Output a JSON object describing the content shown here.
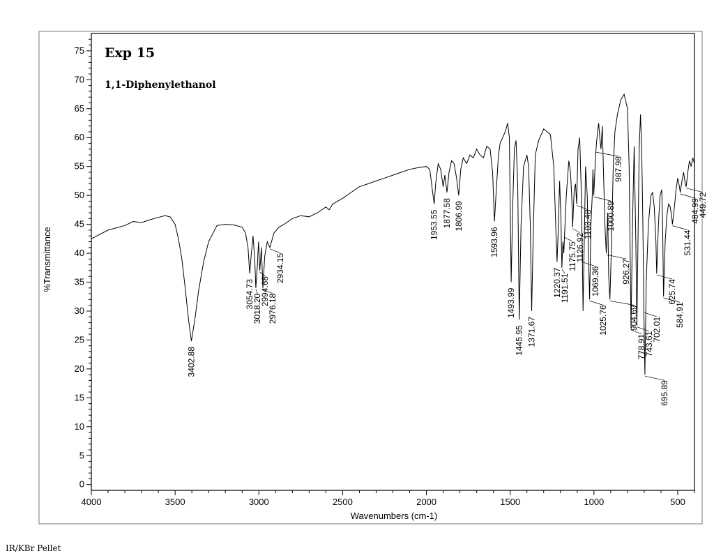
{
  "annotations": {
    "experiment": "Exp 15",
    "compound": "1,1-Diphenylethanol",
    "footer_note": "IR/KBr Pellet"
  },
  "chart_data": {
    "type": "line",
    "title": "",
    "xlabel": "Wavenumbers (cm-1)",
    "ylabel": "%Transmittance",
    "xlim": [
      4000,
      400
    ],
    "ylim": [
      -1,
      78
    ],
    "x_ticks": [
      "4000",
      "3500",
      "3000",
      "2500",
      "2000",
      "1500",
      "1000",
      "500"
    ],
    "y_ticks": [
      "0",
      "5",
      "10",
      "15",
      "20",
      "25",
      "30",
      "35",
      "40",
      "45",
      "50",
      "55",
      "60",
      "65",
      "70",
      "75"
    ],
    "grid": false,
    "series": [
      {
        "name": "",
        "x": [
          4000,
          3900,
          3800,
          3750,
          3700,
          3650,
          3600,
          3560,
          3530,
          3500,
          3480,
          3460,
          3440,
          3420,
          3402.88,
          3380,
          3360,
          3330,
          3300,
          3250,
          3200,
          3150,
          3100,
          3080,
          3065,
          3054.73,
          3045,
          3035,
          3025,
          3018.2,
          3010,
          3002,
          2994.68,
          2985,
          2976.18,
          2965,
          2950,
          2934.15,
          2910,
          2880,
          2850,
          2800,
          2750,
          2700,
          2650,
          2600,
          2580,
          2560,
          2500,
          2450,
          2400,
          2350,
          2300,
          2250,
          2200,
          2150,
          2100,
          2050,
          2000,
          1980,
          1965,
          1953.55,
          1945,
          1930,
          1915,
          1900,
          1890,
          1877.58,
          1865,
          1850,
          1835,
          1820,
          1806.99,
          1795,
          1780,
          1760,
          1740,
          1720,
          1700,
          1680,
          1660,
          1640,
          1620,
          1605,
          1593.96,
          1585,
          1570,
          1560,
          1545,
          1530,
          1515,
          1505,
          1493.99,
          1485,
          1475,
          1465,
          1455,
          1445.95,
          1435,
          1420,
          1400,
          1390,
          1380,
          1371.67,
          1362,
          1350,
          1330,
          1300,
          1280,
          1260,
          1240,
          1225,
          1220.37,
          1212,
          1205,
          1197,
          1191.51,
          1185,
          1180,
          1175.75,
          1165,
          1150,
          1140,
          1133,
          1126.92,
          1118,
          1110,
          1103.48,
          1095,
          1085,
          1075,
          1069,
          1065,
          1058,
          1050,
          1040,
          1033,
          1025.76,
          1018,
          1010,
          1006,
          1000.89,
          992,
          985,
          978,
          972,
          965,
          958,
          950,
          944,
          935,
          926.27,
          918,
          912,
          904.69,
          895,
          885,
          875,
          860,
          840,
          820,
          800,
          790,
          778.91,
          770,
          760,
          750,
          743.61,
          736,
          730,
          722,
          715,
          708,
          702.01,
          695.89,
          688,
          675,
          660,
          650,
          640,
          630,
          625.74,
          615,
          605,
          595,
          590,
          584.91,
          575,
          565,
          555,
          545,
          535,
          531.44,
          520,
          510,
          500,
          490,
          484.99,
          475,
          465,
          455,
          449.72,
          440,
          430,
          420,
          410,
          400
        ],
        "y": [
          42.5,
          44.0,
          44.8,
          45.5,
          45.3,
          45.8,
          46.2,
          46.5,
          46.3,
          45.0,
          42.5,
          39.0,
          34.0,
          28.5,
          24.8,
          29.0,
          33.5,
          38.5,
          42.0,
          44.8,
          45.0,
          44.9,
          44.5,
          43.5,
          41.0,
          36.5,
          40.0,
          43.0,
          39.0,
          34.0,
          37.5,
          42.0,
          37.0,
          41.0,
          34.0,
          39.5,
          42.0,
          41.0,
          43.5,
          44.5,
          45.0,
          46.0,
          46.5,
          46.3,
          47.0,
          48.0,
          47.5,
          48.5,
          49.5,
          50.5,
          51.5,
          52.0,
          52.5,
          53.0,
          53.5,
          54.0,
          54.5,
          54.8,
          55.0,
          54.5,
          51.0,
          48.5,
          52.0,
          55.5,
          54.5,
          51.5,
          53.5,
          50.5,
          54.0,
          56.0,
          55.5,
          53.0,
          50.0,
          54.5,
          56.5,
          55.5,
          57.0,
          56.5,
          58.0,
          57.0,
          56.5,
          58.5,
          58.0,
          54.0,
          45.5,
          50.0,
          57.0,
          59.0,
          60.0,
          61.0,
          62.5,
          60.0,
          35.0,
          48.0,
          58.0,
          59.5,
          52.0,
          28.5,
          45.0,
          55.0,
          57.0,
          55.0,
          45.0,
          30.0,
          44.0,
          57.0,
          59.5,
          61.5,
          61.0,
          60.5,
          55.0,
          42.0,
          38.5,
          45.0,
          52.5,
          46.0,
          37.5,
          42.0,
          40.0,
          43.0,
          50.0,
          56.0,
          54.0,
          50.0,
          44.5,
          51.0,
          52.0,
          48.5,
          58.0,
          60.0,
          50.0,
          38.0,
          30.0,
          42.0,
          55.0,
          50.0,
          40.0,
          32.0,
          45.0,
          50.0,
          54.5,
          50.0,
          56.0,
          59.0,
          61.0,
          62.5,
          60.0,
          58.0,
          62.0,
          55.0,
          45.0,
          40.0,
          47.0,
          36.0,
          32.0,
          42.0,
          55.0,
          61.0,
          64.0,
          66.5,
          67.5,
          65.0,
          55.0,
          27.0,
          45.0,
          58.5,
          42.0,
          27.5,
          45.0,
          58.0,
          64.0,
          58.0,
          45.0,
          30.0,
          19.0,
          35.0,
          45.0,
          50.0,
          50.5,
          48.0,
          42.0,
          36.5,
          45.0,
          50.0,
          51.0,
          45.0,
          32.5,
          42.0,
          46.5,
          48.5,
          48.0,
          46.0,
          45.0,
          48.0,
          51.0,
          53.0,
          51.5,
          50.5,
          52.5,
          54.0,
          52.0,
          51.5,
          54.0,
          56.0,
          55.0,
          56.5,
          55.5
        ]
      }
    ],
    "peak_labels": [
      {
        "x": 3402.88,
        "label": "3402.88"
      },
      {
        "x": 3054.73,
        "label": "3054.73"
      },
      {
        "x": 3018.2,
        "label": "3018.20"
      },
      {
        "x": 2994.68,
        "label": "2994.68"
      },
      {
        "x": 2976.18,
        "label": "2976.18"
      },
      {
        "x": 2934.15,
        "label": "2934.15"
      },
      {
        "x": 1953.55,
        "label": "1953.55"
      },
      {
        "x": 1877.58,
        "label": "1877.58"
      },
      {
        "x": 1806.99,
        "label": "1806.99"
      },
      {
        "x": 1593.96,
        "label": "1593.96"
      },
      {
        "x": 1493.99,
        "label": "1493.99"
      },
      {
        "x": 1445.95,
        "label": "1445.95"
      },
      {
        "x": 1371.67,
        "label": "1371.67"
      },
      {
        "x": 1220.37,
        "label": "1220.37"
      },
      {
        "x": 1191.51,
        "label": "1191.51"
      },
      {
        "x": 1175.75,
        "label": "1175.75"
      },
      {
        "x": 1126.92,
        "label": "1126.92"
      },
      {
        "x": 1103.48,
        "label": "1103.48"
      },
      {
        "x": 1069.36,
        "label": "1069.36"
      },
      {
        "x": 1025.76,
        "label": "1025.76"
      },
      {
        "x": 1000.89,
        "label": "1000.89"
      },
      {
        "x": 987.98,
        "label": "987.98"
      },
      {
        "x": 926.27,
        "label": "926.27"
      },
      {
        "x": 904.69,
        "label": "904.69"
      },
      {
        "x": 778.91,
        "label": "778.91"
      },
      {
        "x": 743.61,
        "label": "743.61"
      },
      {
        "x": 702.01,
        "label": "702.01"
      },
      {
        "x": 695.89,
        "label": "695.89"
      },
      {
        "x": 625.74,
        "label": "625.74"
      },
      {
        "x": 584.91,
        "label": "584.91"
      },
      {
        "x": 531.44,
        "label": "531.44"
      },
      {
        "x": 484.99,
        "label": "484.99"
      },
      {
        "x": 449.72,
        "label": "449.72"
      }
    ]
  }
}
